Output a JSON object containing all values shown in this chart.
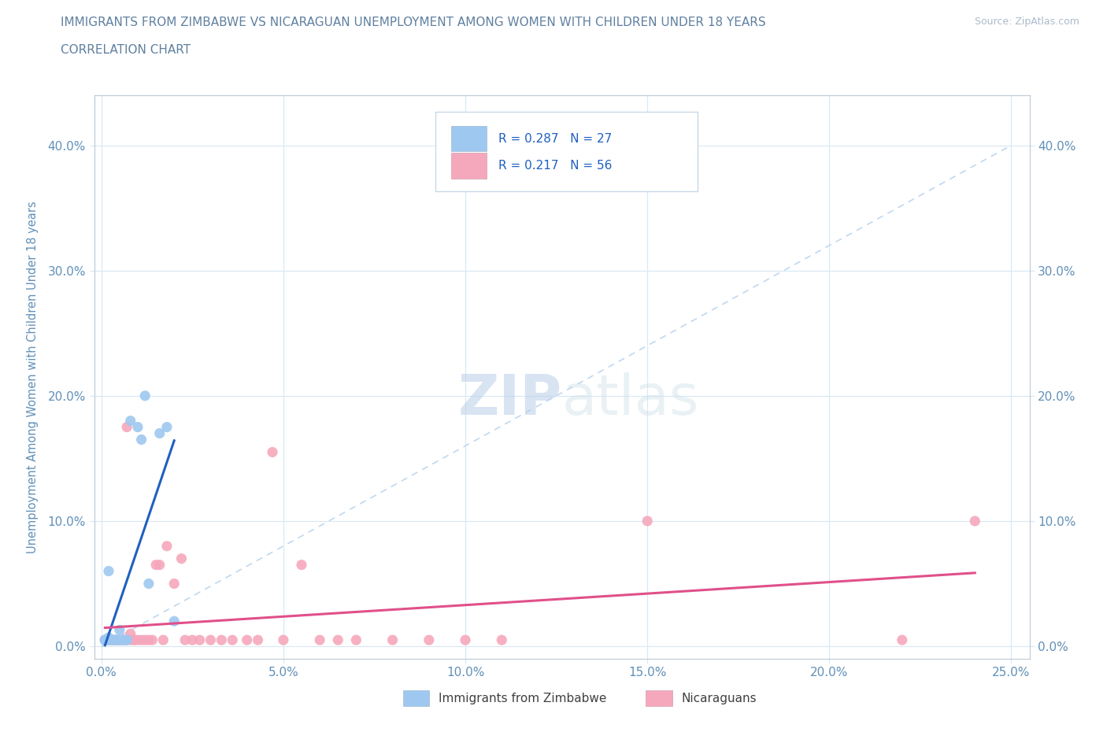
{
  "title": "IMMIGRANTS FROM ZIMBABWE VS NICARAGUAN UNEMPLOYMENT AMONG WOMEN WITH CHILDREN UNDER 18 YEARS",
  "subtitle": "CORRELATION CHART",
  "source": "Source: ZipAtlas.com",
  "ylabel": "Unemployment Among Women with Children Under 18 years",
  "xlabel_ticks": [
    "0.0%",
    "5.0%",
    "10.0%",
    "15.0%",
    "20.0%",
    "25.0%"
  ],
  "xlabel_vals": [
    0.0,
    0.05,
    0.1,
    0.15,
    0.2,
    0.25
  ],
  "ylabel_ticks": [
    "0.0%",
    "10.0%",
    "20.0%",
    "30.0%",
    "40.0%"
  ],
  "ylabel_vals": [
    0.0,
    0.1,
    0.2,
    0.3,
    0.4
  ],
  "xlim": [
    -0.002,
    0.255
  ],
  "ylim": [
    -0.01,
    0.44
  ],
  "legend_blue_label": "Immigrants from Zimbabwe",
  "legend_pink_label": "Nicaraguans",
  "R_blue": 0.287,
  "N_blue": 27,
  "R_pink": 0.217,
  "N_pink": 56,
  "blue_scatter_x": [
    0.001,
    0.001,
    0.001,
    0.002,
    0.002,
    0.002,
    0.002,
    0.003,
    0.003,
    0.003,
    0.004,
    0.004,
    0.004,
    0.005,
    0.005,
    0.005,
    0.006,
    0.007,
    0.007,
    0.008,
    0.01,
    0.011,
    0.012,
    0.013,
    0.016,
    0.018,
    0.02
  ],
  "blue_scatter_y": [
    0.005,
    0.005,
    0.005,
    0.005,
    0.005,
    0.007,
    0.06,
    0.005,
    0.005,
    0.005,
    0.005,
    0.005,
    0.005,
    0.005,
    0.005,
    0.013,
    0.005,
    0.005,
    0.005,
    0.18,
    0.175,
    0.165,
    0.2,
    0.05,
    0.17,
    0.175,
    0.02
  ],
  "pink_scatter_x": [
    0.001,
    0.001,
    0.001,
    0.002,
    0.002,
    0.002,
    0.003,
    0.003,
    0.003,
    0.004,
    0.004,
    0.004,
    0.005,
    0.005,
    0.005,
    0.006,
    0.006,
    0.006,
    0.007,
    0.007,
    0.008,
    0.008,
    0.009,
    0.009,
    0.01,
    0.011,
    0.012,
    0.013,
    0.014,
    0.015,
    0.016,
    0.017,
    0.018,
    0.02,
    0.022,
    0.023,
    0.025,
    0.027,
    0.03,
    0.033,
    0.036,
    0.04,
    0.043,
    0.047,
    0.05,
    0.055,
    0.06,
    0.065,
    0.07,
    0.08,
    0.09,
    0.1,
    0.11,
    0.15,
    0.22,
    0.24
  ],
  "pink_scatter_y": [
    0.005,
    0.005,
    0.005,
    0.005,
    0.005,
    0.005,
    0.005,
    0.005,
    0.005,
    0.005,
    0.005,
    0.005,
    0.005,
    0.005,
    0.005,
    0.005,
    0.005,
    0.005,
    0.005,
    0.175,
    0.005,
    0.01,
    0.005,
    0.005,
    0.005,
    0.005,
    0.005,
    0.005,
    0.005,
    0.065,
    0.065,
    0.005,
    0.08,
    0.05,
    0.07,
    0.005,
    0.005,
    0.005,
    0.005,
    0.005,
    0.005,
    0.005,
    0.005,
    0.155,
    0.005,
    0.065,
    0.005,
    0.005,
    0.005,
    0.005,
    0.005,
    0.005,
    0.005,
    0.1,
    0.005,
    0.1
  ],
  "blue_color": "#9ec8f0",
  "pink_color": "#f5a8bc",
  "blue_line_color": "#2060c0",
  "pink_line_color": "#e0508a",
  "diagonal_color": "#c0d8f0",
  "background_color": "#ffffff",
  "grid_color": "#d8e8f4",
  "watermark_zip": "ZIP",
  "watermark_atlas": "atlas",
  "title_color": "#6080a0",
  "tick_color": "#6090b8"
}
